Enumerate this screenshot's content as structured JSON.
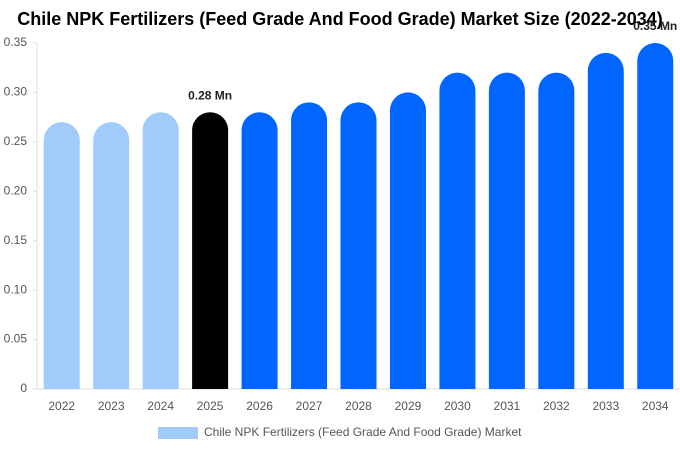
{
  "chart_data": {
    "type": "bar",
    "title": "Chile NPK Fertilizers (Feed Grade And Food Grade) Market Size (2022-2034)",
    "categories": [
      "2022",
      "2023",
      "2024",
      "2025",
      "2026",
      "2027",
      "2028",
      "2029",
      "2030",
      "2031",
      "2032",
      "2033",
      "2034"
    ],
    "series": [
      {
        "name": "Chile NPK Fertilizers (Feed Grade And Food Grade) Market",
        "color": "#a0cbfb",
        "values": [
          0.27,
          0.27,
          0.28,
          0.28,
          0.28,
          0.29,
          0.29,
          0.3,
          0.32,
          0.32,
          0.32,
          0.34,
          0.35
        ],
        "value_labels": [
          null,
          null,
          null,
          "0.28 Mn",
          null,
          null,
          null,
          null,
          null,
          null,
          null,
          null,
          "0.35 Mn"
        ],
        "colors": [
          "#a0cbfb",
          "#a0cbfb",
          "#a0cbfb",
          "#000000",
          "#0066ff",
          "#0066ff",
          "#0066ff",
          "#0066ff",
          "#0066ff",
          "#0066ff",
          "#0066ff",
          "#0066ff",
          "#0066ff"
        ]
      }
    ],
    "ylim": [
      0,
      0.35
    ],
    "yticks": [
      0,
      0.05,
      {
        "value": 0.1,
        "label": "0.10"
      },
      0.15,
      {
        "value": 0.2,
        "label": "0.20"
      },
      0.25,
      {
        "value": 0.3,
        "label": "0.30"
      },
      0.35
    ],
    "grid": false,
    "legend": "bottom"
  }
}
